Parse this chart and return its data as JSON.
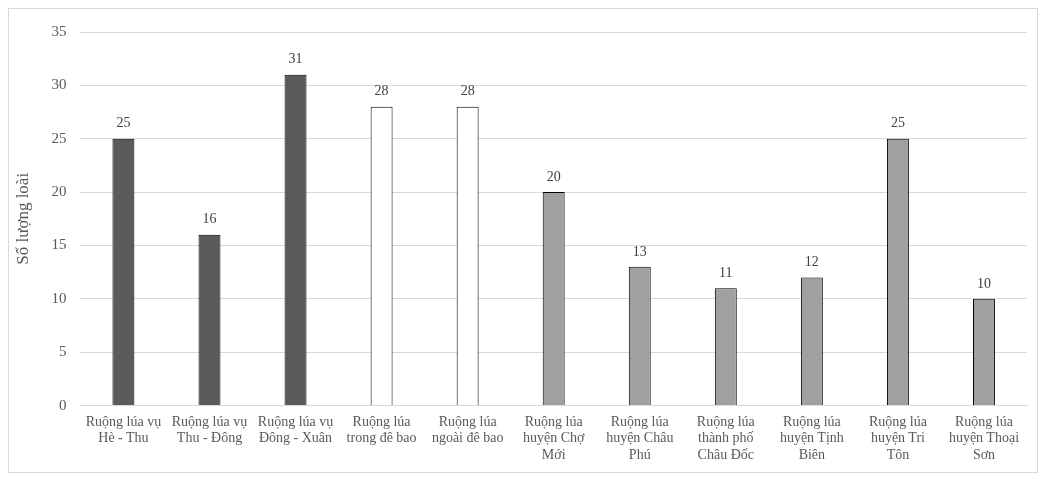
{
  "chart_data": {
    "type": "bar",
    "ylabel": "Số lượng loài",
    "categories": [
      "Ruộng lúa vụ Hè - Thu",
      "Ruộng lúa vụ Thu - Đông",
      "Ruộng lúa vụ Đông - Xuân",
      "Ruộng lúa trong đê bao",
      "Ruộng lúa ngoài đê bao",
      "Ruộng lúa huyện Chợ Mới",
      "Ruộng lúa huyện Châu Phú",
      "Ruộng lúa thành phố Châu Đốc",
      "Ruộng lúa huyện Tịnh Biên",
      "Ruộng lúa huyện Tri Tôn",
      "Ruộng lúa huyện Thoại Sơn"
    ],
    "values": [
      25,
      16,
      31,
      28,
      28,
      20,
      13,
      11,
      12,
      25,
      10
    ],
    "colors": [
      "#5a5a5a",
      "#5a5a5a",
      "#5a5a5a",
      "#ffffff",
      "#ffffff",
      "#a0a0a0",
      "#a0a0a0",
      "#a0a0a0",
      "#a0a0a0",
      "#a0a0a0",
      "#a0a0a0"
    ],
    "ylim": [
      0,
      35
    ],
    "yticks": [
      0,
      5,
      10,
      15,
      20,
      25,
      30,
      35
    ],
    "grid": "y",
    "data_labels": true,
    "legend": false
  }
}
